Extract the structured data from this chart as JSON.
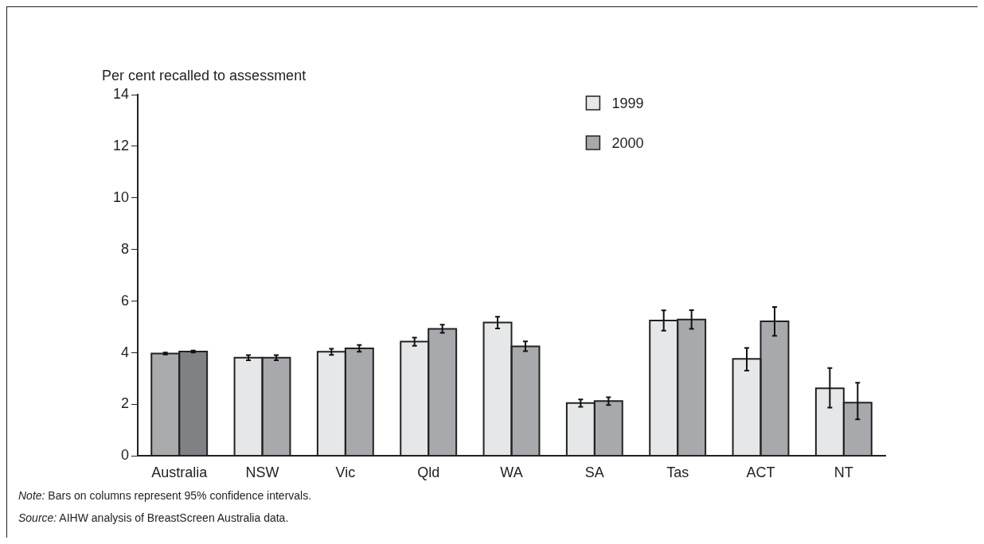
{
  "chart_data": {
    "type": "bar",
    "ylabel": "Per cent recalled to assessment",
    "categories": [
      "Australia",
      "NSW",
      "Vic",
      "Qld",
      "WA",
      "SA",
      "Tas",
      "ACT",
      "NT"
    ],
    "series": [
      {
        "name": "1999",
        "color": "#e6e7e8",
        "colors": [
          "#a9aaac",
          "#e6e7e8",
          "#e6e7e8",
          "#e6e7e8",
          "#e6e7e8",
          "#e6e7e8",
          "#e6e7e8",
          "#e6e7e8",
          "#e6e7e8"
        ],
        "values": [
          3.97,
          3.81,
          4.04,
          4.43,
          5.17,
          2.05,
          5.25,
          3.76,
          2.62
        ],
        "errors": [
          0.04,
          0.1,
          0.12,
          0.16,
          0.23,
          0.14,
          0.39,
          [
            3.31,
            4.19
          ],
          [
            1.88,
            3.41
          ]
        ]
      },
      {
        "name": "2000",
        "color": "#a7a9ac",
        "colors": [
          "#808184",
          "#a7a9ac",
          "#a7a9ac",
          "#a7a9ac",
          "#a7a9ac",
          "#a7a9ac",
          "#a7a9ac",
          "#a7a9ac",
          "#a7a9ac"
        ],
        "values": [
          4.05,
          3.81,
          4.17,
          4.93,
          4.25,
          2.13,
          5.29,
          5.22,
          2.07
        ],
        "errors": [
          0.04,
          0.1,
          0.13,
          0.16,
          0.19,
          0.15,
          0.36,
          [
            4.66,
            5.77
          ],
          [
            1.42,
            2.84
          ]
        ]
      }
    ],
    "ylim": [
      0,
      14
    ],
    "yticks": [
      0,
      2,
      4,
      6,
      8,
      10,
      12,
      14
    ],
    "grid": false,
    "legend": "top right",
    "annotations": [
      "Note: Bars on columns represent 95% confidence intervals.",
      "Source: AIHW analysis of BreastScreen Australia data."
    ]
  }
}
